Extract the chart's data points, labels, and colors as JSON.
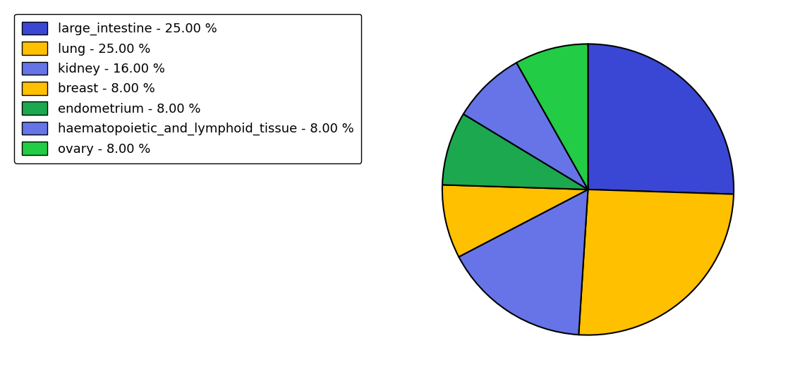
{
  "labels": [
    "large_intestine",
    "lung",
    "kidney",
    "breast",
    "endometrium",
    "haematopoietic_and_lymphoid_tissue",
    "ovary"
  ],
  "values": [
    25,
    25,
    16,
    8,
    8,
    8,
    8
  ],
  "colors": [
    "#3a47d5",
    "#ffc000",
    "#6674e8",
    "#ffc000",
    "#1ca84f",
    "#6674e8",
    "#22cc44"
  ],
  "legend_labels": [
    "large_intestine - 25.00 %",
    "lung - 25.00 %",
    "kidney - 16.00 %",
    "breast - 8.00 %",
    "endometrium - 8.00 %",
    "haematopoietic_and_lymphoid_tissue - 8.00 %",
    "ovary - 8.00 %"
  ],
  "background_color": "#ffffff",
  "pie_edge_color": "#000000",
  "pie_linewidth": 1.5,
  "legend_fontsize": 13,
  "startangle": 90
}
